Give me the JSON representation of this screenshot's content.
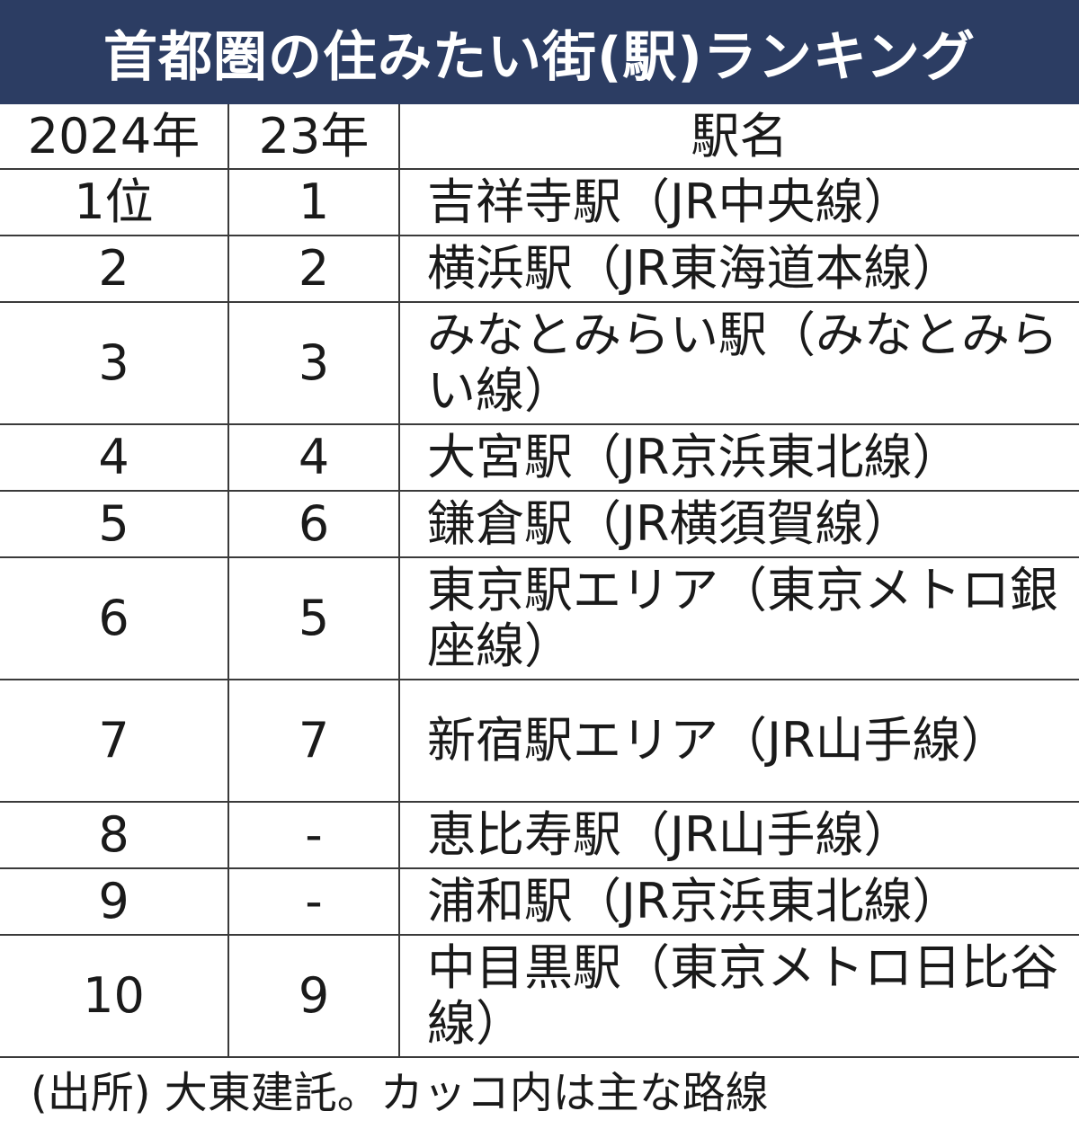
{
  "title": "首都圏の住みたい街(駅)ランキング",
  "chart_data": {
    "type": "table",
    "title": "首都圏の住みたい街(駅)ランキング",
    "columns": [
      "2024年",
      "23年",
      "駅名"
    ],
    "rows": [
      {
        "rank_2024": "1位",
        "rank_2023": "1",
        "station": "吉祥寺駅（JR中央線）"
      },
      {
        "rank_2024": "2",
        "rank_2023": "2",
        "station": "横浜駅（JR東海道本線）"
      },
      {
        "rank_2024": "3",
        "rank_2023": "3",
        "station": "みなとみらい駅（みなとみらい線）"
      },
      {
        "rank_2024": "4",
        "rank_2023": "4",
        "station": "大宮駅（JR京浜東北線）"
      },
      {
        "rank_2024": "5",
        "rank_2023": "6",
        "station": "鎌倉駅（JR横須賀線）"
      },
      {
        "rank_2024": "6",
        "rank_2023": "5",
        "station": "東京駅エリア（東京メトロ銀座線）"
      },
      {
        "rank_2024": "7",
        "rank_2023": "7",
        "station": "新宿駅エリア（JR山手線）"
      },
      {
        "rank_2024": "8",
        "rank_2023": "-",
        "station": "恵比寿駅（JR山手線）"
      },
      {
        "rank_2024": "9",
        "rank_2023": "-",
        "station": "浦和駅（JR京浜東北線）"
      },
      {
        "rank_2024": "10",
        "rank_2023": "9",
        "station": "中目黒駅（東京メトロ日比谷線）"
      }
    ]
  },
  "source_note": "(出所) 大東建託。カッコ内は主な路線",
  "colors": {
    "title_bg": "#2c3d63",
    "title_text": "#ffffff",
    "grid": "#3a3a3a",
    "text": "#1a1a1a"
  }
}
